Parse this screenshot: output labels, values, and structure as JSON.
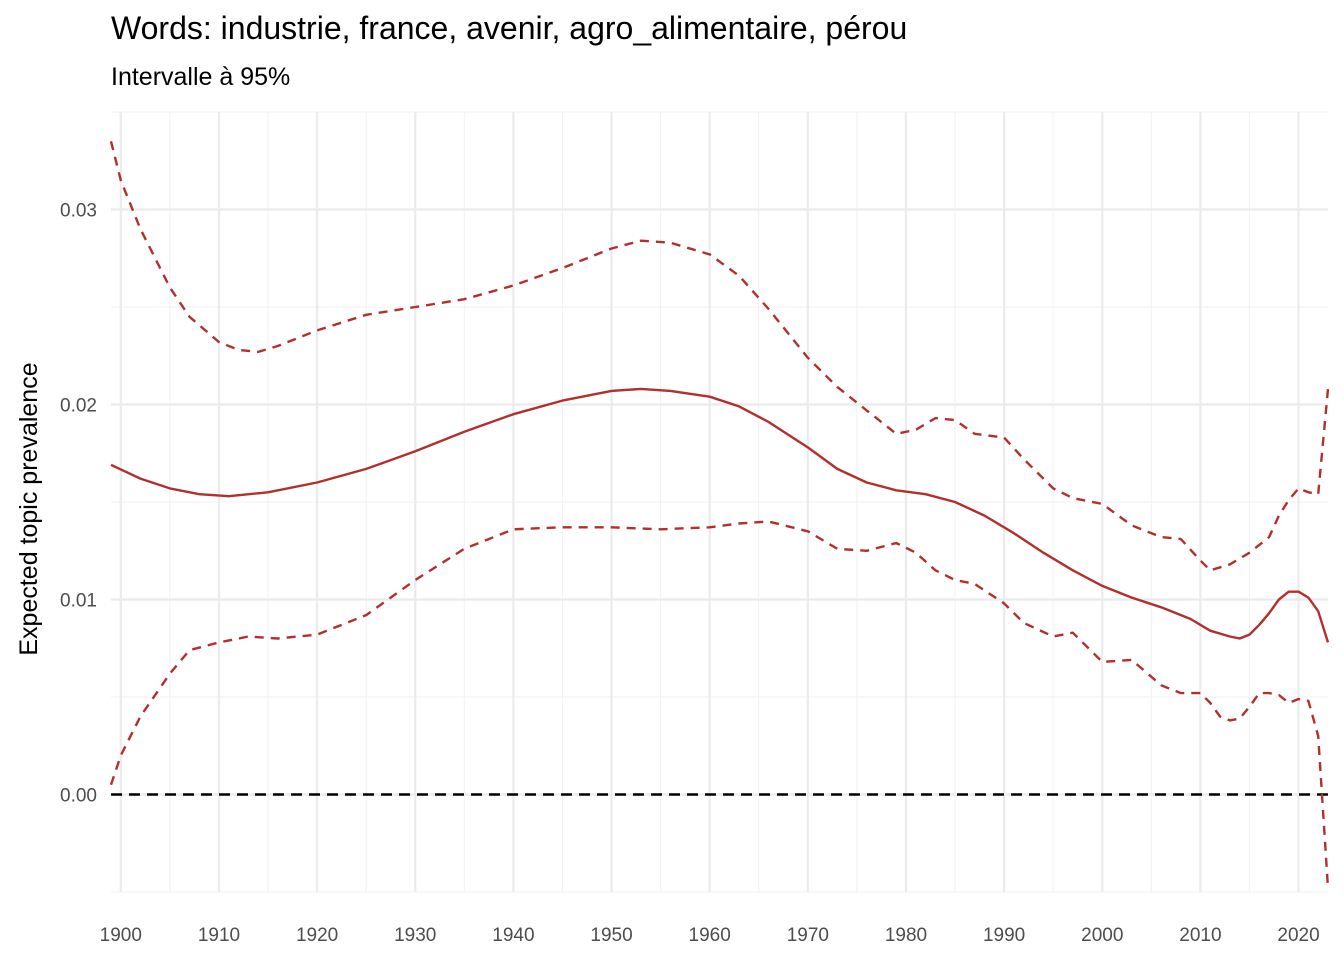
{
  "chart_data": {
    "type": "line",
    "title": "Words: industrie, france, avenir, agro_alimentaire, pérou",
    "subtitle": "Intervalle à 95%",
    "xlabel": "",
    "ylabel": "Expected topic prevalence",
    "xlim": [
      1899,
      2023
    ],
    "ylim": [
      -0.005,
      0.035
    ],
    "x_ticks": [
      1900,
      1910,
      1920,
      1930,
      1940,
      1950,
      1960,
      1970,
      1980,
      1990,
      2000,
      2010,
      2020
    ],
    "x_tick_labels": [
      "1900",
      "1910",
      "1920",
      "1930",
      "1940",
      "1950",
      "1960",
      "1970",
      "1980",
      "1990",
      "2000",
      "2010",
      "2020"
    ],
    "y_ticks": [
      0.0,
      0.01,
      0.02,
      0.03
    ],
    "y_tick_labels": [
      "0.00",
      "0.01",
      "0.02",
      "0.03"
    ],
    "grid": true,
    "line_color": "#B2302C",
    "reference_line": {
      "y": 0,
      "style": "dashed",
      "color": "#000000"
    },
    "series": [
      {
        "style": "solid",
        "x": [
          1899,
          1902,
          1905,
          1908,
          1911,
          1915,
          1920,
          1925,
          1930,
          1935,
          1940,
          1945,
          1950,
          1953,
          1956,
          1960,
          1963,
          1966,
          1970,
          1973,
          1976,
          1979,
          1982,
          1985,
          1988,
          1991,
          1994,
          1997,
          2000,
          2003,
          2006,
          2009,
          2011,
          2013,
          2014,
          2015,
          2016,
          2017,
          2018,
          2019,
          2020,
          2021,
          2022,
          2023
        ],
        "y": [
          0.0169,
          0.0162,
          0.0157,
          0.0154,
          0.0153,
          0.0155,
          0.016,
          0.0167,
          0.0176,
          0.0186,
          0.0195,
          0.0202,
          0.0207,
          0.0208,
          0.0207,
          0.0204,
          0.0199,
          0.0191,
          0.0178,
          0.0167,
          0.016,
          0.0156,
          0.0154,
          0.015,
          0.0143,
          0.0134,
          0.0124,
          0.0115,
          0.0107,
          0.0101,
          0.0096,
          0.009,
          0.0084,
          0.0081,
          0.008,
          0.0082,
          0.0087,
          0.0093,
          0.01,
          0.0104,
          0.0104,
          0.0101,
          0.0094,
          0.0078
        ]
      },
      {
        "style": "dashed",
        "x": [
          1899,
          1900,
          1902,
          1905,
          1907,
          1910,
          1912,
          1914,
          1916,
          1920,
          1925,
          1930,
          1935,
          1940,
          1945,
          1950,
          1953,
          1956,
          1960,
          1963,
          1966,
          1970,
          1973,
          1976,
          1979,
          1981,
          1983,
          1985,
          1987,
          1990,
          1992,
          1995,
          1997,
          2000,
          2003,
          2006,
          2008,
          2010,
          2011,
          2013,
          2015,
          2017,
          2018,
          2019,
          2020,
          2021,
          2022,
          2023
        ],
        "y": [
          0.0335,
          0.0315,
          0.029,
          0.026,
          0.0245,
          0.0232,
          0.0228,
          0.0227,
          0.023,
          0.0238,
          0.0246,
          0.025,
          0.0254,
          0.0261,
          0.027,
          0.028,
          0.0284,
          0.0283,
          0.0277,
          0.0266,
          0.0249,
          0.0224,
          0.0209,
          0.0197,
          0.0185,
          0.0187,
          0.0193,
          0.0192,
          0.0185,
          0.0183,
          0.0172,
          0.0157,
          0.0152,
          0.0149,
          0.0138,
          0.0132,
          0.0131,
          0.012,
          0.0115,
          0.0118,
          0.0124,
          0.0132,
          0.0143,
          0.0151,
          0.0157,
          0.0155,
          0.0154,
          0.0208
        ]
      },
      {
        "style": "dashed",
        "x": [
          1899,
          1900,
          1902,
          1905,
          1907,
          1910,
          1913,
          1916,
          1920,
          1925,
          1930,
          1935,
          1940,
          1945,
          1950,
          1955,
          1960,
          1963,
          1966,
          1970,
          1973,
          1976,
          1979,
          1981,
          1983,
          1985,
          1987,
          1990,
          1992,
          1995,
          1997,
          2000,
          2003,
          2006,
          2008,
          2010,
          2011,
          2012,
          2013,
          2014,
          2015,
          2016,
          2017,
          2018,
          2019,
          2020,
          2021,
          2022,
          2023
        ],
        "y": [
          0.0005,
          0.002,
          0.004,
          0.0062,
          0.0074,
          0.0078,
          0.0081,
          0.008,
          0.0082,
          0.0092,
          0.011,
          0.0126,
          0.0136,
          0.0137,
          0.0137,
          0.0136,
          0.0137,
          0.0139,
          0.014,
          0.0135,
          0.0126,
          0.0125,
          0.0129,
          0.0124,
          0.0115,
          0.011,
          0.0108,
          0.0098,
          0.0088,
          0.0081,
          0.0083,
          0.0068,
          0.0069,
          0.0056,
          0.0052,
          0.0052,
          0.0047,
          0.004,
          0.0038,
          0.0039,
          0.0045,
          0.0052,
          0.0052,
          0.0051,
          0.0047,
          0.0049,
          0.0048,
          0.003,
          -0.0048
        ]
      }
    ]
  }
}
